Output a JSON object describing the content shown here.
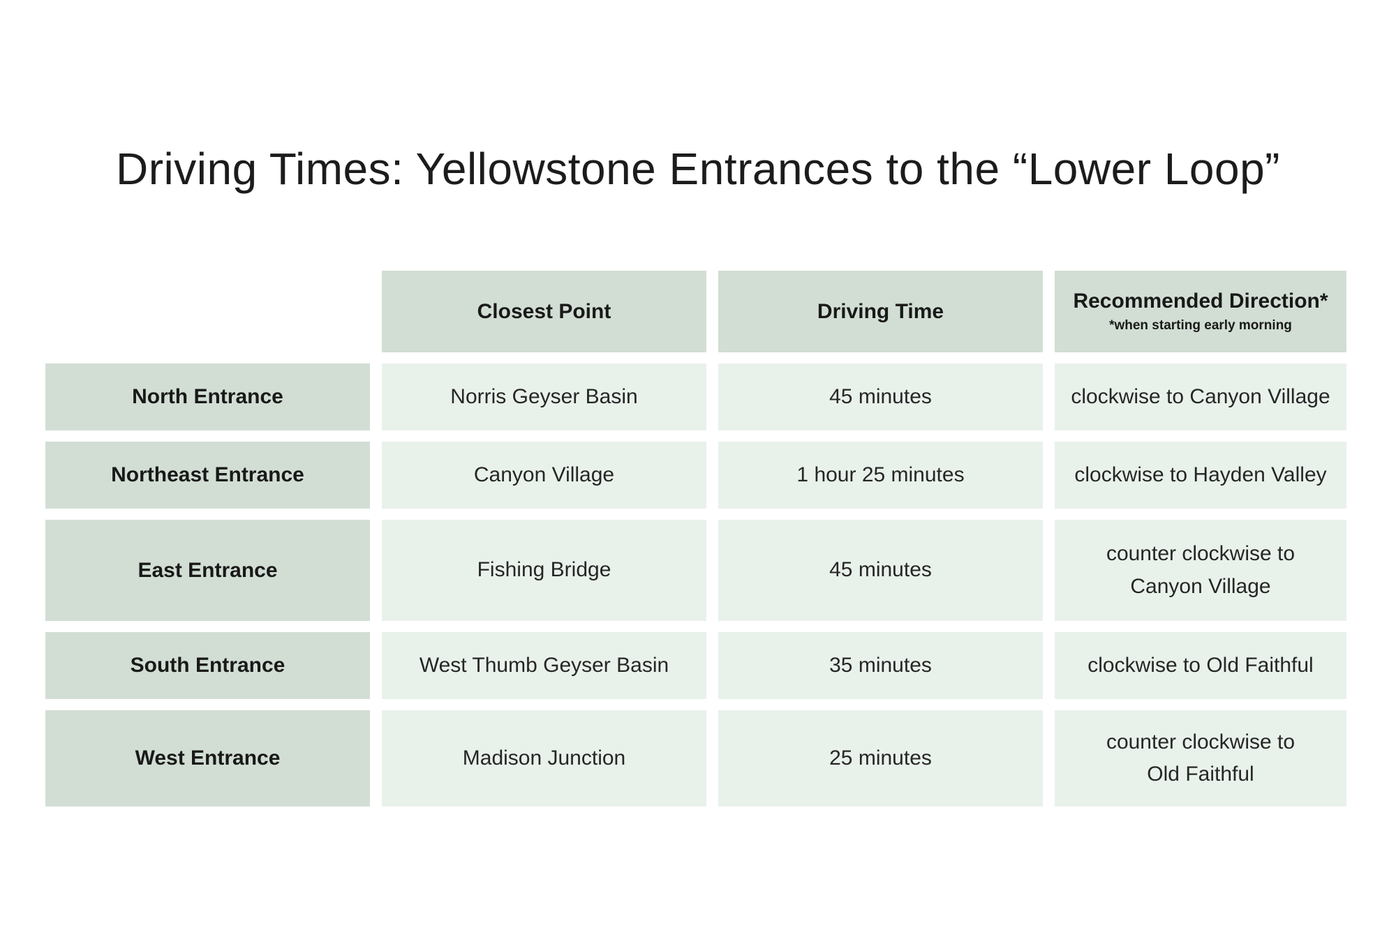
{
  "title": "Driving Times: Yellowstone Entrances to the “Lower Loop”",
  "chart_data": {
    "type": "table",
    "title": "Driving Times: Yellowstone Entrances to the “Lower Loop”",
    "columns": [
      "Closest Point",
      "Driving Time",
      "Recommended Direction*"
    ],
    "column_note": "*when starting early morning",
    "rows": [
      {
        "entrance": "North Entrance",
        "closest_point": "Norris Geyser Basin",
        "driving_time": "45 minutes",
        "recommended_direction": "clockwise to Canyon Village"
      },
      {
        "entrance": "Northeast Entrance",
        "closest_point": "Canyon Village",
        "driving_time": "1 hour 25 minutes",
        "recommended_direction": "clockwise to Hayden Valley"
      },
      {
        "entrance": "East Entrance",
        "closest_point": "Fishing Bridge",
        "driving_time": "45 minutes",
        "recommended_direction": "counter clockwise to\nCanyon Village"
      },
      {
        "entrance": "South Entrance",
        "closest_point": "West Thumb Geyser Basin",
        "driving_time": "35 minutes",
        "recommended_direction": "clockwise to Old Faithful"
      },
      {
        "entrance": "West Entrance",
        "closest_point": "Madison Junction",
        "driving_time": "25 minutes",
        "recommended_direction": "counter clockwise to\nOld Faithful"
      }
    ]
  },
  "colors": {
    "page_bg": "#ffffff",
    "header_bg": "#d2ded4",
    "cell_bg": "#e9f1eb",
    "title_text": "#1c1c1c",
    "bold_text": "#191919",
    "body_text": "#262626"
  }
}
